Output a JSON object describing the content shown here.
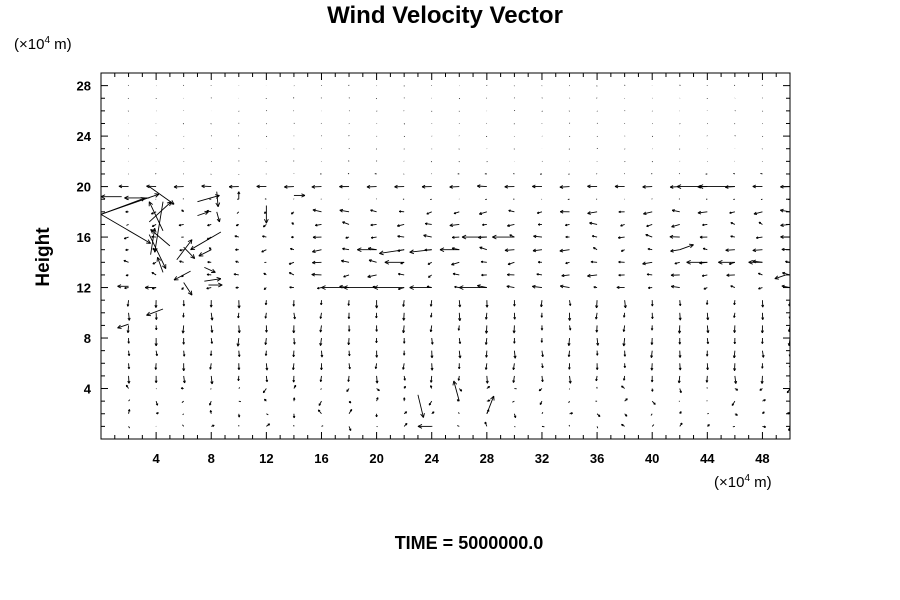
{
  "chart_data": {
    "type": "vector",
    "title": "Wind Velocity Vector",
    "ylabel": "Height",
    "xlabel": "",
    "x_unit": {
      "prefix": "(×10",
      "exp": "4",
      "suffix": " m)"
    },
    "y_unit": {
      "prefix": "(×10",
      "exp": "4",
      "suffix": " m)"
    },
    "xlim": [
      0,
      50
    ],
    "ylim": [
      0,
      29
    ],
    "x_ticks": [
      4,
      8,
      12,
      16,
      20,
      24,
      28,
      32,
      36,
      40,
      44,
      48
    ],
    "y_ticks": [
      4,
      8,
      12,
      16,
      20,
      24,
      28
    ],
    "x_tick_labels": [
      "4",
      "8",
      "12",
      "16",
      "20",
      "24",
      "28",
      "32",
      "36",
      "40",
      "44",
      "48"
    ],
    "y_tick_labels": [
      "4",
      "8",
      "12",
      "16",
      "20",
      "24",
      "28"
    ],
    "grid_dx": 2,
    "grid_dy": 1,
    "grid": false,
    "legend": "none",
    "vectors": [
      {
        "x": 0,
        "y": 17.8,
        "u": 3.2,
        "v": 1.3
      },
      {
        "x": 0,
        "y": 17.8,
        "u": 3.6,
        "v": -2.3
      },
      {
        "x": 0,
        "y": 17.8,
        "u": 4.2,
        "v": 1.6
      },
      {
        "x": 1.5,
        "y": 19.2,
        "u": -1.5,
        "v": 0
      },
      {
        "x": 3.5,
        "y": 19.1,
        "u": -1.8,
        "v": 0
      },
      {
        "x": 3.5,
        "y": 20,
        "u": 1.8,
        "v": -1.4
      },
      {
        "x": 3.5,
        "y": 17.2,
        "u": 1.6,
        "v": 1.6
      },
      {
        "x": 3.5,
        "y": 16.2,
        "u": 1.2,
        "v": -2.7
      },
      {
        "x": 4.5,
        "y": 18.8,
        "u": -0.6,
        "v": -4
      },
      {
        "x": 4.5,
        "y": 16.5,
        "u": -1,
        "v": 2.3
      },
      {
        "x": 5,
        "y": 15.3,
        "u": -1.4,
        "v": 1.3
      },
      {
        "x": 3.6,
        "y": 14.6,
        "u": 0.3,
        "v": 2.1
      },
      {
        "x": 4.5,
        "y": 13.2,
        "u": -0.4,
        "v": 1.2
      },
      {
        "x": 5.5,
        "y": 14.2,
        "u": 1.1,
        "v": 1.6
      },
      {
        "x": 6.5,
        "y": 13.3,
        "u": -1.2,
        "v": -0.7
      },
      {
        "x": 6,
        "y": 12.4,
        "u": 0.6,
        "v": -1
      },
      {
        "x": 6,
        "y": 15.2,
        "u": 0.8,
        "v": -0.9
      },
      {
        "x": 7,
        "y": 18.8,
        "u": 1.6,
        "v": 0.5
      },
      {
        "x": 7,
        "y": 17.7,
        "u": 0.8,
        "v": 0.3
      },
      {
        "x": 8.7,
        "y": 16.4,
        "u": -2.2,
        "v": -1.4
      },
      {
        "x": 8,
        "y": 15,
        "u": -0.9,
        "v": -0.5
      },
      {
        "x": 7.5,
        "y": 13.6,
        "u": 0.8,
        "v": -0.4
      },
      {
        "x": 7.5,
        "y": 12.5,
        "u": 1.2,
        "v": 0.2
      },
      {
        "x": 7.8,
        "y": 12.2,
        "u": 1,
        "v": 0
      },
      {
        "x": 8.4,
        "y": 19.6,
        "u": 0.1,
        "v": -1.2
      },
      {
        "x": 8.4,
        "y": 18,
        "u": 0.2,
        "v": -0.8
      },
      {
        "x": 4.5,
        "y": 10.3,
        "u": -1.2,
        "v": -0.5
      },
      {
        "x": 2,
        "y": 9.1,
        "u": -0.8,
        "v": -0.3
      },
      {
        "x": 2,
        "y": 12.1,
        "u": -0.8,
        "v": 0
      },
      {
        "x": 4,
        "y": 12,
        "u": -0.8,
        "v": 0
      },
      {
        "x": 46,
        "y": 20,
        "u": -2.6,
        "v": 0
      },
      {
        "x": 44,
        "y": 20,
        "u": -2.2,
        "v": 0
      },
      {
        "x": 42,
        "y": 15,
        "u": 1,
        "v": 0.4
      },
      {
        "x": 44,
        "y": 14,
        "u": -1.5,
        "v": 0
      },
      {
        "x": 46,
        "y": 14,
        "u": -1.2,
        "v": 0
      },
      {
        "x": 48,
        "y": 14,
        "u": -1,
        "v": 0
      },
      {
        "x": 49.7,
        "y": 13,
        "u": -0.8,
        "v": -0.3
      },
      {
        "x": 20,
        "y": 12,
        "u": -2.4,
        "v": 0
      },
      {
        "x": 22,
        "y": 12,
        "u": -2.2,
        "v": 0
      },
      {
        "x": 24,
        "y": 12,
        "u": -1.6,
        "v": 0
      },
      {
        "x": 28,
        "y": 12,
        "u": -2,
        "v": 0
      },
      {
        "x": 18,
        "y": 12,
        "u": -2,
        "v": 0
      },
      {
        "x": 22,
        "y": 15,
        "u": -1.8,
        "v": -0.3
      },
      {
        "x": 24,
        "y": 15,
        "u": -1.6,
        "v": -0.2
      },
      {
        "x": 20,
        "y": 15,
        "u": -1.4,
        "v": 0
      },
      {
        "x": 22,
        "y": 14,
        "u": -1.4,
        "v": 0
      },
      {
        "x": 28,
        "y": 16,
        "u": -1.8,
        "v": 0
      },
      {
        "x": 30,
        "y": 16,
        "u": -1.6,
        "v": 0
      },
      {
        "x": 26,
        "y": 15,
        "u": -1.4,
        "v": 0
      },
      {
        "x": 24,
        "y": 1,
        "u": -1,
        "v": 0
      },
      {
        "x": 23,
        "y": 3.5,
        "u": 0.4,
        "v": -1.8
      },
      {
        "x": 26,
        "y": 3,
        "u": -0.4,
        "v": 1.6
      },
      {
        "x": 28,
        "y": 2,
        "u": 0.5,
        "v": 1.4
      },
      {
        "x": 12,
        "y": 18.5,
        "u": 0,
        "v": -1.4
      },
      {
        "x": 10,
        "y": 19,
        "u": 0,
        "v": 0.6
      },
      {
        "x": 14,
        "y": 19.3,
        "u": 0.8,
        "v": 0
      }
    ],
    "background_field": true,
    "time_label": "TIME = 5000000.0"
  }
}
